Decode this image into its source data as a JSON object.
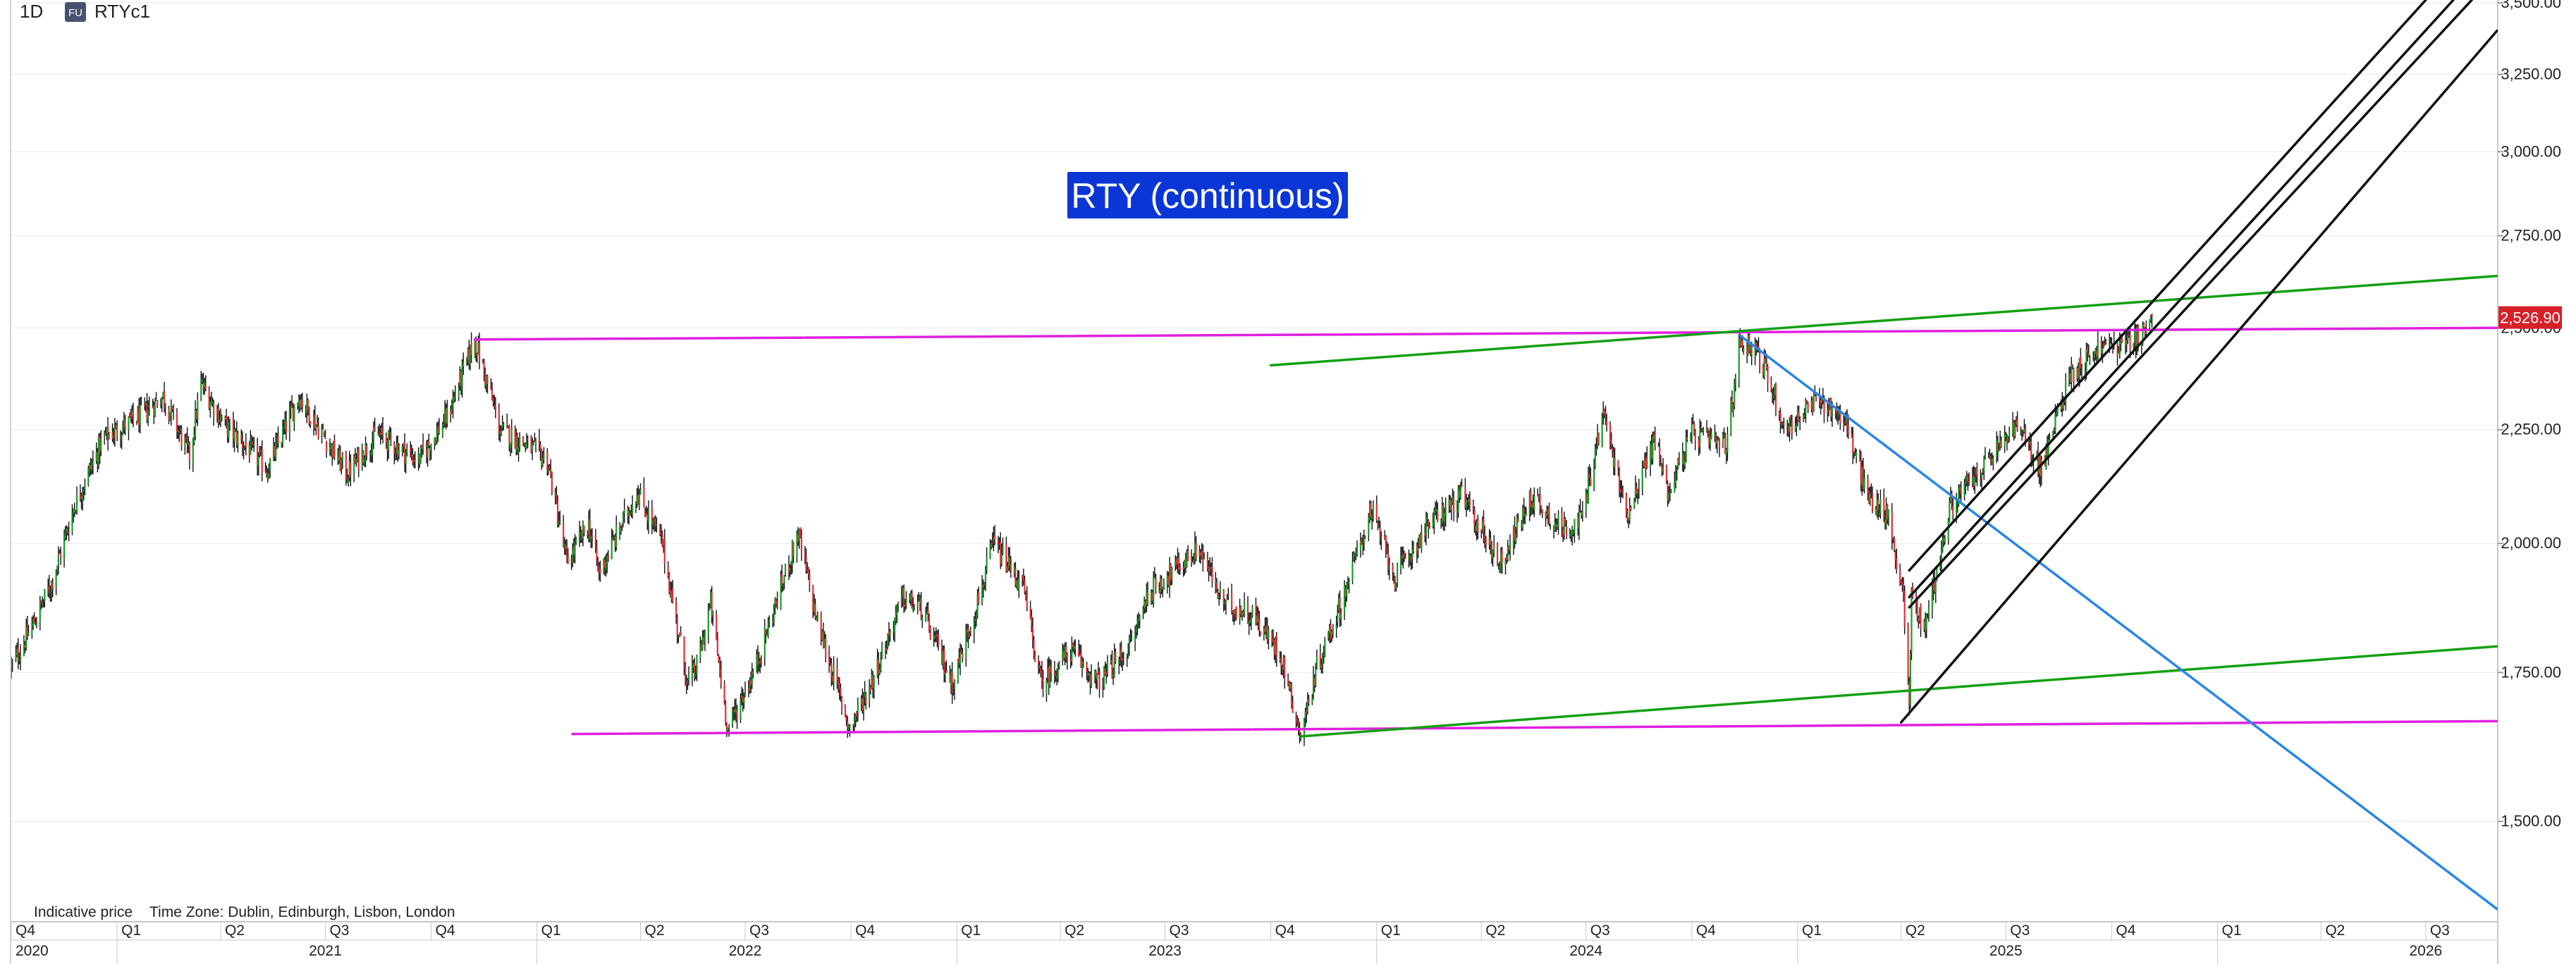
{
  "header": {
    "interval": "1D",
    "symbol_badge": "FU",
    "symbol": "RTYc1"
  },
  "footer": {
    "indicative": "Indicative price",
    "timezone": "Time Zone: Dublin, Edinburgh, Lisbon, London"
  },
  "colors": {
    "up": "#1a9a2a",
    "down": "#e0303c",
    "wick": "#111111",
    "magenta": "#e020e0",
    "green": "#12a012",
    "blue": "#2a86e6",
    "black": "#111111",
    "title_bg": "#0b36d6",
    "price_tag": "#d6202a",
    "grid": "#e8e8ee"
  },
  "chart_data": {
    "type": "candlestick",
    "title": "RTY (continuous)",
    "y_scale": "log",
    "ylim": [
      1360,
      3510
    ],
    "xlim": [
      "2020-10-01",
      "2026-09-01"
    ],
    "last_price": "2,526.90",
    "y_ticks": [
      {
        "value": 3500,
        "label": "3,500.00"
      },
      {
        "value": 3250,
        "label": "3,250.00"
      },
      {
        "value": 3000,
        "label": "3,000.00"
      },
      {
        "value": 2750,
        "label": "2,750.00"
      },
      {
        "value": 2500,
        "label": "2,500.00"
      },
      {
        "value": 2250,
        "label": "2,250.00"
      },
      {
        "value": 2000,
        "label": "2,000.00"
      },
      {
        "value": 1750,
        "label": "1,750.00"
      },
      {
        "value": 1500,
        "label": "1,500.00"
      }
    ],
    "quarter_ticks": [
      {
        "date": "2020-10-01",
        "label": "Q4"
      },
      {
        "date": "2021-01-01",
        "label": "Q1"
      },
      {
        "date": "2021-04-01",
        "label": "Q2"
      },
      {
        "date": "2021-07-01",
        "label": "Q3"
      },
      {
        "date": "2021-10-01",
        "label": "Q4"
      },
      {
        "date": "2022-01-01",
        "label": "Q1"
      },
      {
        "date": "2022-04-01",
        "label": "Q2"
      },
      {
        "date": "2022-07-01",
        "label": "Q3"
      },
      {
        "date": "2022-10-01",
        "label": "Q4"
      },
      {
        "date": "2023-01-01",
        "label": "Q1"
      },
      {
        "date": "2023-04-01",
        "label": "Q2"
      },
      {
        "date": "2023-07-01",
        "label": "Q3"
      },
      {
        "date": "2023-10-01",
        "label": "Q4"
      },
      {
        "date": "2024-01-01",
        "label": "Q1"
      },
      {
        "date": "2024-04-01",
        "label": "Q2"
      },
      {
        "date": "2024-07-01",
        "label": "Q3"
      },
      {
        "date": "2024-10-01",
        "label": "Q4"
      },
      {
        "date": "2025-01-01",
        "label": "Q1"
      },
      {
        "date": "2025-04-01",
        "label": "Q2"
      },
      {
        "date": "2025-07-01",
        "label": "Q3"
      },
      {
        "date": "2025-10-01",
        "label": "Q4"
      },
      {
        "date": "2026-01-01",
        "label": "Q1"
      },
      {
        "date": "2026-04-01",
        "label": "Q2"
      },
      {
        "date": "2026-07-01",
        "label": "Q3"
      }
    ],
    "year_ticks": [
      {
        "date": "2020-10-01",
        "label": "2020"
      },
      {
        "date": "2021-07-01",
        "label": "2021"
      },
      {
        "date": "2022-07-01",
        "label": "2022"
      },
      {
        "date": "2023-07-01",
        "label": "2023"
      },
      {
        "date": "2024-07-01",
        "label": "2024"
      },
      {
        "date": "2025-07-01",
        "label": "2025"
      },
      {
        "date": "2026-07-01",
        "label": "2026"
      }
    ],
    "price_path": [
      [
        "2020-10-01",
        1760
      ],
      [
        "2020-10-20",
        1840
      ],
      [
        "2020-11-05",
        1920
      ],
      [
        "2020-11-25",
        2080
      ],
      [
        "2020-12-20",
        2230
      ],
      [
        "2021-01-20",
        2280
      ],
      [
        "2021-02-10",
        2330
      ],
      [
        "2021-03-05",
        2190
      ],
      [
        "2021-03-15",
        2360
      ],
      [
        "2021-04-05",
        2260
      ],
      [
        "2021-05-12",
        2160
      ],
      [
        "2021-06-08",
        2330
      ],
      [
        "2021-07-20",
        2150
      ],
      [
        "2021-08-15",
        2240
      ],
      [
        "2021-09-20",
        2180
      ],
      [
        "2021-10-15",
        2280
      ],
      [
        "2021-11-08",
        2470
      ],
      [
        "2021-11-30",
        2250
      ],
      [
        "2021-12-20",
        2220
      ],
      [
        "2022-01-10",
        2180
      ],
      [
        "2022-01-27",
        1960
      ],
      [
        "2022-02-15",
        2040
      ],
      [
        "2022-02-24",
        1940
      ],
      [
        "2022-03-29",
        2110
      ],
      [
        "2022-04-20",
        2000
      ],
      [
        "2022-05-12",
        1730
      ],
      [
        "2022-05-20",
        1760
      ],
      [
        "2022-06-01",
        1880
      ],
      [
        "2022-06-16",
        1650
      ],
      [
        "2022-07-10",
        1760
      ],
      [
        "2022-08-16",
        2020
      ],
      [
        "2022-09-01",
        1850
      ],
      [
        "2022-09-30",
        1650
      ],
      [
        "2022-10-20",
        1740
      ],
      [
        "2022-11-15",
        1890
      ],
      [
        "2022-12-01",
        1870
      ],
      [
        "2022-12-28",
        1730
      ],
      [
        "2023-01-20",
        1890
      ],
      [
        "2023-02-02",
        2000
      ],
      [
        "2023-02-28",
        1910
      ],
      [
        "2023-03-15",
        1730
      ],
      [
        "2023-04-10",
        1790
      ],
      [
        "2023-05-04",
        1730
      ],
      [
        "2023-06-01",
        1800
      ],
      [
        "2023-06-16",
        1900
      ],
      [
        "2023-07-31",
        1990
      ],
      [
        "2023-08-20",
        1880
      ],
      [
        "2023-09-15",
        1860
      ],
      [
        "2023-10-10",
        1780
      ],
      [
        "2023-10-27",
        1640
      ],
      [
        "2023-11-10",
        1760
      ],
      [
        "2023-12-01",
        1880
      ],
      [
        "2023-12-27",
        2070
      ],
      [
        "2024-01-17",
        1930
      ],
      [
        "2024-02-15",
        2040
      ],
      [
        "2024-03-15",
        2100
      ],
      [
        "2024-04-18",
        1960
      ],
      [
        "2024-05-15",
        2100
      ],
      [
        "2024-06-10",
        2030
      ],
      [
        "2024-06-27",
        2050
      ],
      [
        "2024-07-16",
        2290
      ],
      [
        "2024-08-05",
        2060
      ],
      [
        "2024-08-30",
        2230
      ],
      [
        "2024-09-10",
        2110
      ],
      [
        "2024-10-01",
        2240
      ],
      [
        "2024-10-31",
        2210
      ],
      [
        "2024-11-12",
        2470
      ],
      [
        "2024-11-25",
        2450
      ],
      [
        "2024-12-10",
        2350
      ],
      [
        "2024-12-20",
        2250
      ],
      [
        "2025-01-20",
        2320
      ],
      [
        "2025-02-10",
        2280
      ],
      [
        "2025-03-03",
        2100
      ],
      [
        "2025-03-20",
        2060
      ],
      [
        "2025-04-03",
        1900
      ],
      [
        "2025-04-08",
        1680
      ],
      [
        "2025-04-10",
        1900
      ],
      [
        "2025-04-21",
        1830
      ],
      [
        "2025-05-14",
        2080
      ],
      [
        "2025-06-10",
        2160
      ],
      [
        "2025-07-10",
        2260
      ],
      [
        "2025-08-01",
        2160
      ],
      [
        "2025-08-25",
        2380
      ],
      [
        "2025-09-20",
        2450
      ],
      [
        "2025-10-15",
        2460
      ],
      [
        "2025-10-25",
        2480
      ],
      [
        "2025-11-05",
        2526.9
      ]
    ],
    "trendlines": [
      {
        "color": "magenta",
        "points": [
          [
            "2021-11-08",
            2470
          ],
          [
            "2026-09-01",
            2500
          ]
        ]
      },
      {
        "color": "magenta",
        "points": [
          [
            "2022-02-01",
            1642
          ],
          [
            "2026-09-01",
            1664
          ]
        ]
      },
      {
        "color": "green",
        "points": [
          [
            "2023-10-27",
            1638
          ],
          [
            "2026-09-01",
            1798
          ]
        ]
      },
      {
        "color": "green",
        "points": [
          [
            "2023-10-01",
            2405
          ],
          [
            "2026-09-01",
            2638
          ]
        ]
      },
      {
        "color": "blue",
        "points": [
          [
            "2024-11-12",
            2480
          ],
          [
            "2026-09-01",
            1370
          ]
        ]
      },
      {
        "color": "black",
        "points": [
          [
            "2025-04-08",
            1945
          ],
          [
            "2026-07-01",
            3510
          ]
        ]
      },
      {
        "color": "black",
        "points": [
          [
            "2025-04-08",
            1892
          ],
          [
            "2026-07-25",
            3510
          ]
        ]
      },
      {
        "color": "black",
        "points": [
          [
            "2025-04-08",
            1872
          ],
          [
            "2026-08-10",
            3510
          ]
        ]
      },
      {
        "color": "black",
        "points": [
          [
            "2025-04-01",
            1662
          ],
          [
            "2026-09-01",
            3400
          ]
        ]
      }
    ]
  }
}
